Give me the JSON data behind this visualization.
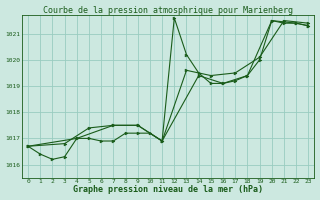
{
  "title": "Courbe de la pression atmosphrique pour Marienberg",
  "xlabel": "Graphe pression niveau de la mer (hPa)",
  "background_color": "#cce8e0",
  "grid_color": "#99ccc0",
  "line_color": "#1a5c1a",
  "xlim": [
    -0.5,
    23.5
  ],
  "ylim": [
    1015.5,
    1021.7
  ],
  "yticks": [
    1016,
    1017,
    1018,
    1019,
    1020,
    1021
  ],
  "xticks": [
    0,
    1,
    2,
    3,
    4,
    5,
    6,
    7,
    8,
    9,
    10,
    11,
    12,
    13,
    14,
    15,
    16,
    17,
    18,
    19,
    20,
    21,
    22,
    23
  ],
  "series1": [
    [
      0,
      1016.7
    ],
    [
      1,
      1016.4
    ],
    [
      2,
      1016.2
    ],
    [
      3,
      1016.3
    ],
    [
      4,
      1017.0
    ],
    [
      5,
      1017.0
    ],
    [
      6,
      1016.9
    ],
    [
      7,
      1016.9
    ],
    [
      8,
      1017.2
    ],
    [
      9,
      1017.2
    ],
    [
      10,
      1017.2
    ],
    [
      11,
      1016.9
    ],
    [
      12,
      1021.6
    ],
    [
      13,
      1020.2
    ],
    [
      14,
      1019.5
    ],
    [
      15,
      1019.1
    ],
    [
      16,
      1019.1
    ],
    [
      17,
      1019.2
    ],
    [
      18,
      1019.4
    ],
    [
      19,
      1020.0
    ],
    [
      20,
      1021.5
    ],
    [
      21,
      1021.4
    ],
    [
      22,
      1021.4
    ],
    [
      23,
      1021.3
    ]
  ],
  "series2": [
    [
      0,
      1016.7
    ],
    [
      3,
      1016.8
    ],
    [
      5,
      1017.4
    ],
    [
      7,
      1017.5
    ],
    [
      9,
      1017.5
    ],
    [
      11,
      1016.9
    ],
    [
      13,
      1019.6
    ],
    [
      15,
      1019.4
    ],
    [
      17,
      1019.5
    ],
    [
      19,
      1020.1
    ],
    [
      21,
      1021.5
    ],
    [
      23,
      1021.4
    ]
  ],
  "series3": [
    [
      0,
      1016.7
    ],
    [
      4,
      1017.0
    ],
    [
      7,
      1017.5
    ],
    [
      9,
      1017.5
    ],
    [
      11,
      1016.9
    ],
    [
      14,
      1019.4
    ],
    [
      16,
      1019.1
    ],
    [
      18,
      1019.4
    ],
    [
      20,
      1021.5
    ],
    [
      22,
      1021.4
    ],
    [
      23,
      1021.3
    ]
  ],
  "figsize": [
    3.2,
    2.0
  ],
  "dpi": 100,
  "title_fontsize": 6,
  "xlabel_fontsize": 6,
  "tick_fontsize": 4.5
}
